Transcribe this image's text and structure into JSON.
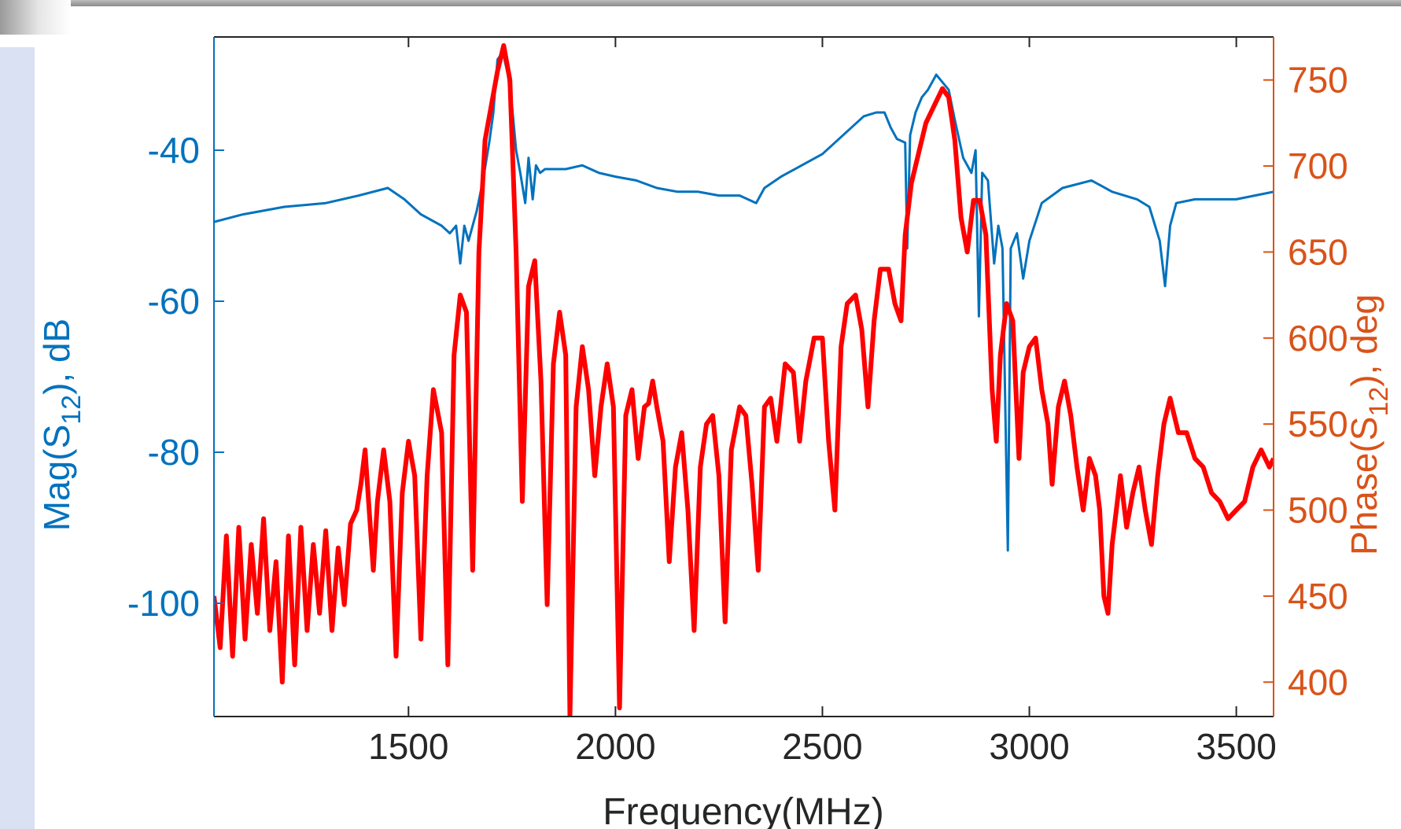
{
  "chart_data": {
    "type": "line",
    "xlabel": "Frequency(MHz)",
    "x_ticks": [
      1500,
      2000,
      2500,
      3000,
      3500
    ],
    "xlim": [
      1030,
      3590
    ],
    "left_axis": {
      "label_base": "Mag(S",
      "label_sub": "12",
      "label_tail": "), dB",
      "ticks": [
        -40,
        -60,
        -80,
        -100
      ],
      "ylim": [
        -115,
        -25
      ],
      "color": "#0072BD"
    },
    "right_axis": {
      "label_base": "Phase(S",
      "label_sub": "12",
      "label_tail": "), deg",
      "ticks": [
        750,
        700,
        650,
        600,
        550,
        500,
        450,
        400
      ],
      "ylim": [
        380,
        775
      ],
      "color": "#D95319"
    },
    "series": [
      {
        "axis": "left",
        "color": "#0072BD",
        "points": [
          [
            1030,
            -49.5
          ],
          [
            1100,
            -48.5
          ],
          [
            1200,
            -47.5
          ],
          [
            1300,
            -47
          ],
          [
            1380,
            -46
          ],
          [
            1450,
            -45
          ],
          [
            1490,
            -46.5
          ],
          [
            1530,
            -48.5
          ],
          [
            1580,
            -50
          ],
          [
            1600,
            -51
          ],
          [
            1615,
            -50
          ],
          [
            1625,
            -55
          ],
          [
            1635,
            -50
          ],
          [
            1645,
            -52
          ],
          [
            1650,
            -51
          ],
          [
            1665,
            -48
          ],
          [
            1680,
            -44
          ],
          [
            1695,
            -39
          ],
          [
            1705,
            -35
          ],
          [
            1715,
            -28
          ],
          [
            1728,
            -27
          ],
          [
            1740,
            -30
          ],
          [
            1750,
            -34
          ],
          [
            1760,
            -40
          ],
          [
            1770,
            -43
          ],
          [
            1782,
            -47
          ],
          [
            1790,
            -41
          ],
          [
            1800,
            -46.5
          ],
          [
            1808,
            -42
          ],
          [
            1818,
            -43
          ],
          [
            1830,
            -42.5
          ],
          [
            1850,
            -42.5
          ],
          [
            1880,
            -42.5
          ],
          [
            1920,
            -42
          ],
          [
            1960,
            -43
          ],
          [
            2000,
            -43.5
          ],
          [
            2050,
            -44
          ],
          [
            2100,
            -45
          ],
          [
            2150,
            -45.5
          ],
          [
            2200,
            -45.5
          ],
          [
            2250,
            -46
          ],
          [
            2300,
            -46
          ],
          [
            2340,
            -47
          ],
          [
            2360,
            -45
          ],
          [
            2400,
            -43.5
          ],
          [
            2450,
            -42
          ],
          [
            2500,
            -40.5
          ],
          [
            2550,
            -38
          ],
          [
            2600,
            -35.5
          ],
          [
            2630,
            -35
          ],
          [
            2650,
            -35
          ],
          [
            2665,
            -37
          ],
          [
            2680,
            -38.5
          ],
          [
            2700,
            -39
          ],
          [
            2705,
            -53
          ],
          [
            2712,
            -38
          ],
          [
            2725,
            -35
          ],
          [
            2740,
            -33
          ],
          [
            2755,
            -32
          ],
          [
            2775,
            -30
          ],
          [
            2790,
            -31
          ],
          [
            2805,
            -32
          ],
          [
            2820,
            -36
          ],
          [
            2840,
            -41
          ],
          [
            2860,
            -43
          ],
          [
            2870,
            -40
          ],
          [
            2878,
            -62
          ],
          [
            2886,
            -43
          ],
          [
            2900,
            -44
          ],
          [
            2915,
            -55
          ],
          [
            2925,
            -50
          ],
          [
            2935,
            -53
          ],
          [
            2948,
            -93
          ],
          [
            2955,
            -53
          ],
          [
            2970,
            -51
          ],
          [
            2985,
            -57
          ],
          [
            3000,
            -52
          ],
          [
            3030,
            -47
          ],
          [
            3080,
            -45
          ],
          [
            3150,
            -44
          ],
          [
            3200,
            -45.5
          ],
          [
            3260,
            -46.5
          ],
          [
            3290,
            -47.5
          ],
          [
            3315,
            -52
          ],
          [
            3328,
            -58
          ],
          [
            3340,
            -50
          ],
          [
            3355,
            -47
          ],
          [
            3400,
            -46.5
          ],
          [
            3500,
            -46.5
          ],
          [
            3590,
            -45.5
          ]
        ]
      },
      {
        "axis": "right",
        "color": "#FF0000",
        "points": [
          [
            1030,
            450
          ],
          [
            1045,
            420
          ],
          [
            1060,
            485
          ],
          [
            1075,
            415
          ],
          [
            1090,
            490
          ],
          [
            1105,
            425
          ],
          [
            1120,
            480
          ],
          [
            1135,
            440
          ],
          [
            1150,
            495
          ],
          [
            1165,
            430
          ],
          [
            1180,
            470
          ],
          [
            1195,
            400
          ],
          [
            1210,
            485
          ],
          [
            1225,
            410
          ],
          [
            1240,
            490
          ],
          [
            1255,
            430
          ],
          [
            1270,
            480
          ],
          [
            1285,
            440
          ],
          [
            1300,
            488
          ],
          [
            1315,
            430
          ],
          [
            1330,
            478
          ],
          [
            1345,
            445
          ],
          [
            1360,
            492
          ],
          [
            1375,
            500
          ],
          [
            1385,
            515
          ],
          [
            1395,
            535
          ],
          [
            1405,
            500
          ],
          [
            1415,
            465
          ],
          [
            1425,
            505
          ],
          [
            1440,
            535
          ],
          [
            1455,
            505
          ],
          [
            1470,
            415
          ],
          [
            1485,
            510
          ],
          [
            1500,
            540
          ],
          [
            1515,
            520
          ],
          [
            1530,
            425
          ],
          [
            1545,
            520
          ],
          [
            1560,
            570
          ],
          [
            1580,
            545
          ],
          [
            1595,
            410
          ],
          [
            1610,
            590
          ],
          [
            1625,
            625
          ],
          [
            1640,
            615
          ],
          [
            1655,
            465
          ],
          [
            1670,
            650
          ],
          [
            1685,
            715
          ],
          [
            1700,
            735
          ],
          [
            1715,
            755
          ],
          [
            1730,
            770
          ],
          [
            1745,
            750
          ],
          [
            1760,
            650
          ],
          [
            1775,
            505
          ],
          [
            1790,
            630
          ],
          [
            1805,
            645
          ],
          [
            1820,
            575
          ],
          [
            1835,
            445
          ],
          [
            1850,
            585
          ],
          [
            1865,
            615
          ],
          [
            1880,
            590
          ],
          [
            1890,
            380
          ],
          [
            1905,
            560
          ],
          [
            1920,
            595
          ],
          [
            1935,
            570
          ],
          [
            1950,
            520
          ],
          [
            1965,
            560
          ],
          [
            1980,
            585
          ],
          [
            1995,
            560
          ],
          [
            2010,
            385
          ],
          [
            2025,
            555
          ],
          [
            2040,
            570
          ],
          [
            2055,
            530
          ],
          [
            2070,
            560
          ],
          [
            2080,
            562
          ],
          [
            2090,
            575
          ],
          [
            2100,
            560
          ],
          [
            2115,
            540
          ],
          [
            2130,
            470
          ],
          [
            2145,
            525
          ],
          [
            2160,
            545
          ],
          [
            2175,
            500
          ],
          [
            2190,
            430
          ],
          [
            2205,
            525
          ],
          [
            2220,
            550
          ],
          [
            2235,
            555
          ],
          [
            2250,
            520
          ],
          [
            2265,
            435
          ],
          [
            2280,
            535
          ],
          [
            2300,
            560
          ],
          [
            2315,
            555
          ],
          [
            2330,
            515
          ],
          [
            2345,
            465
          ],
          [
            2360,
            560
          ],
          [
            2375,
            565
          ],
          [
            2390,
            540
          ],
          [
            2410,
            585
          ],
          [
            2430,
            580
          ],
          [
            2445,
            540
          ],
          [
            2460,
            575
          ],
          [
            2480,
            600
          ],
          [
            2500,
            600
          ],
          [
            2515,
            540
          ],
          [
            2530,
            500
          ],
          [
            2545,
            595
          ],
          [
            2560,
            620
          ],
          [
            2580,
            625
          ],
          [
            2595,
            605
          ],
          [
            2610,
            560
          ],
          [
            2625,
            610
          ],
          [
            2640,
            640
          ],
          [
            2660,
            640
          ],
          [
            2675,
            620
          ],
          [
            2690,
            610
          ],
          [
            2700,
            660
          ],
          [
            2715,
            690
          ],
          [
            2730,
            705
          ],
          [
            2750,
            725
          ],
          [
            2770,
            735
          ],
          [
            2790,
            745
          ],
          [
            2805,
            740
          ],
          [
            2820,
            715
          ],
          [
            2835,
            670
          ],
          [
            2850,
            650
          ],
          [
            2865,
            680
          ],
          [
            2880,
            680
          ],
          [
            2895,
            660
          ],
          [
            2910,
            570
          ],
          [
            2920,
            540
          ],
          [
            2930,
            590
          ],
          [
            2945,
            620
          ],
          [
            2960,
            610
          ],
          [
            2975,
            530
          ],
          [
            2985,
            580
          ],
          [
            3000,
            595
          ],
          [
            3015,
            600
          ],
          [
            3030,
            570
          ],
          [
            3045,
            550
          ],
          [
            3055,
            515
          ],
          [
            3070,
            560
          ],
          [
            3085,
            575
          ],
          [
            3100,
            555
          ],
          [
            3115,
            525
          ],
          [
            3130,
            500
          ],
          [
            3145,
            530
          ],
          [
            3160,
            520
          ],
          [
            3170,
            500
          ],
          [
            3180,
            450
          ],
          [
            3190,
            440
          ],
          [
            3200,
            480
          ],
          [
            3210,
            500
          ],
          [
            3220,
            520
          ],
          [
            3235,
            490
          ],
          [
            3250,
            510
          ],
          [
            3265,
            525
          ],
          [
            3280,
            500
          ],
          [
            3295,
            480
          ],
          [
            3310,
            520
          ],
          [
            3325,
            550
          ],
          [
            3340,
            565
          ],
          [
            3360,
            545
          ],
          [
            3380,
            545
          ],
          [
            3400,
            530
          ],
          [
            3420,
            525
          ],
          [
            3440,
            510
          ],
          [
            3460,
            505
          ],
          [
            3480,
            495
          ],
          [
            3500,
            500
          ],
          [
            3520,
            505
          ],
          [
            3540,
            525
          ],
          [
            3560,
            535
          ],
          [
            3580,
            525
          ],
          [
            3590,
            530
          ]
        ]
      }
    ]
  }
}
